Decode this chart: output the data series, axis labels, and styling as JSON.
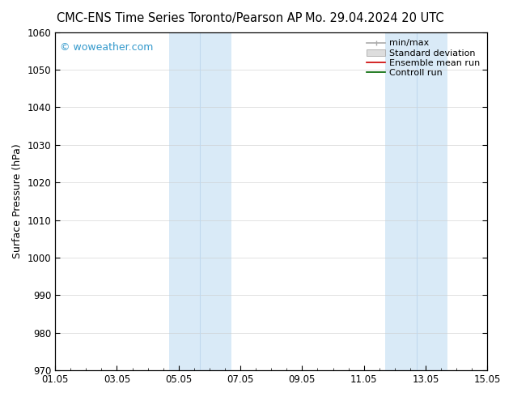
{
  "title_left": "CMC-ENS Time Series Toronto/Pearson AP",
  "title_right": "Mo. 29.04.2024 20 UTC",
  "ylabel": "Surface Pressure (hPa)",
  "ylim": [
    970,
    1060
  ],
  "yticks": [
    970,
    980,
    990,
    1000,
    1010,
    1020,
    1030,
    1040,
    1050,
    1060
  ],
  "xlim": [
    0,
    14
  ],
  "xtick_positions": [
    0,
    2,
    4,
    6,
    8,
    10,
    12,
    14
  ],
  "xtick_labels": [
    "01.05",
    "03.05",
    "05.05",
    "07.05",
    "09.05",
    "11.05",
    "13.05",
    "15.05"
  ],
  "shade_bands": [
    {
      "xmin": 3.7,
      "xmax": 5.7
    },
    {
      "xmin": 10.7,
      "xmax": 12.7
    }
  ],
  "shade_inner_lines": [
    {
      "x": 4.7
    },
    {
      "x": 11.7
    }
  ],
  "shade_color": "#d9eaf7",
  "shade_line_color": "#c0d8ee",
  "watermark": "© woweather.com",
  "watermark_color": "#3399cc",
  "legend_items": [
    {
      "label": "min/max",
      "color": "#aaaaaa",
      "type": "minmax"
    },
    {
      "label": "Standard deviation",
      "color": "#cccccc",
      "type": "std"
    },
    {
      "label": "Ensemble mean run",
      "color": "#cc0000",
      "type": "line"
    },
    {
      "label": "Controll run",
      "color": "#006600",
      "type": "line"
    }
  ],
  "bg_color": "#ffffff",
  "grid_color": "#cccccc",
  "title_fontsize": 10.5,
  "tick_fontsize": 8.5,
  "ylabel_fontsize": 9,
  "legend_fontsize": 8
}
